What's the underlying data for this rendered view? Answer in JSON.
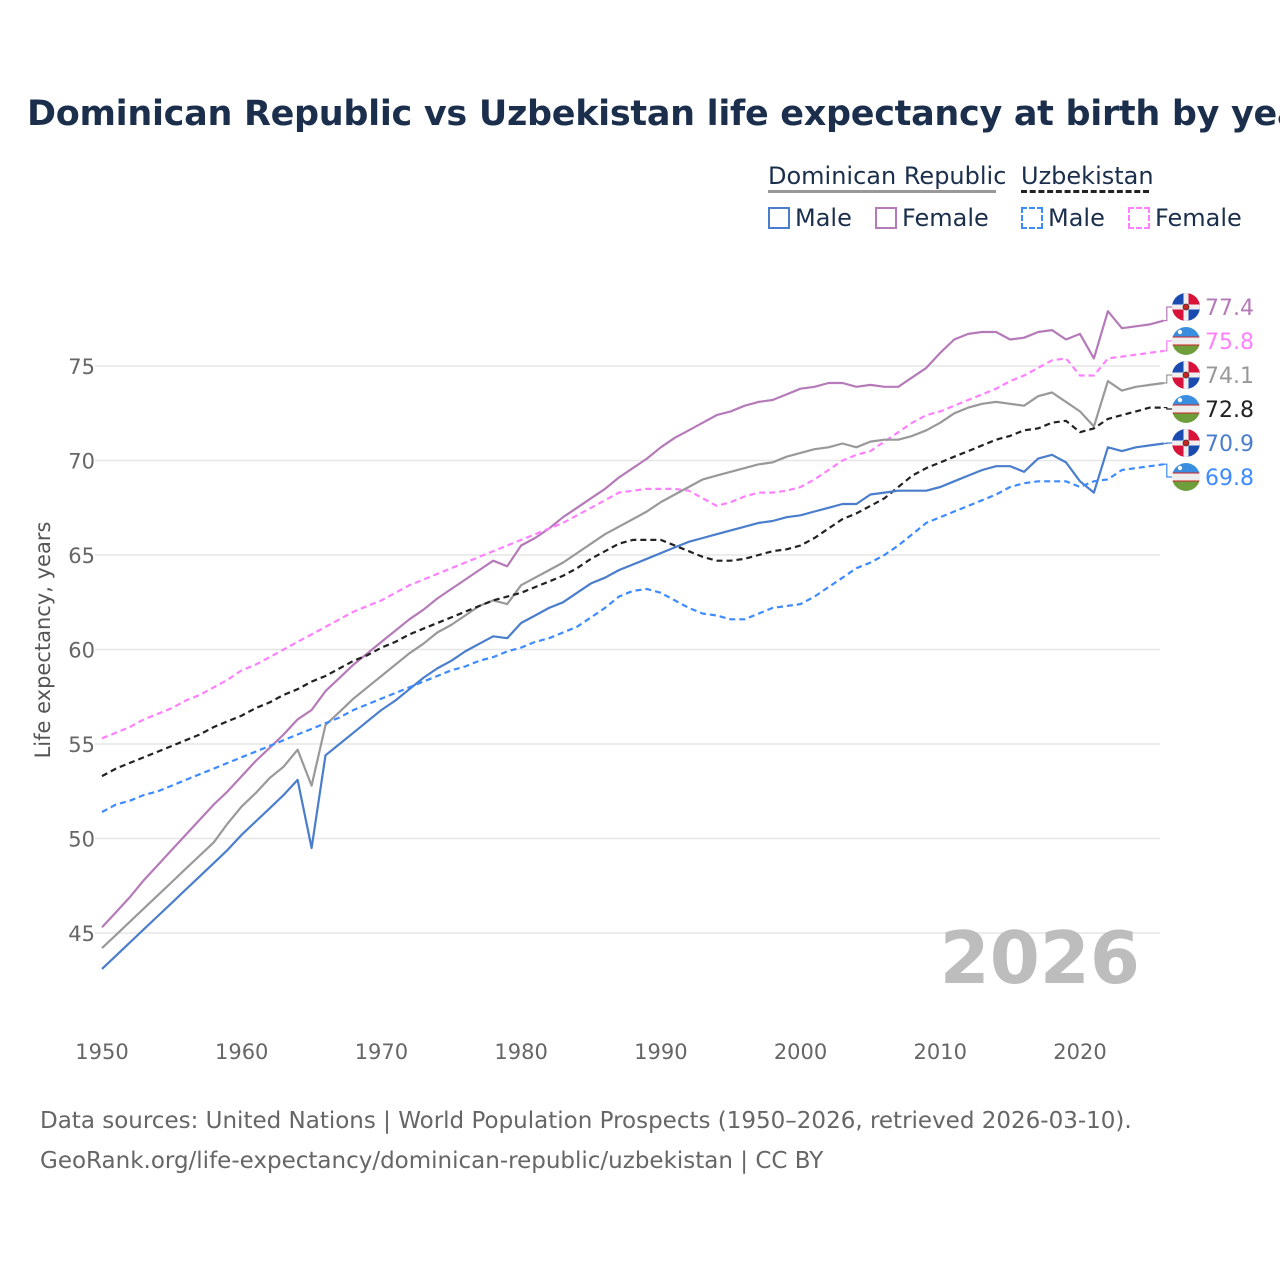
{
  "chart_data": {
    "type": "line",
    "title": "Dominican Republic vs Uzbekistan life expectancy at birth by year",
    "xlabel": "",
    "ylabel": "Life expectancy, years",
    "xlim": [
      1950,
      2026
    ],
    "ylim": [
      41,
      79
    ],
    "x_ticks": [
      "1950",
      "1960",
      "1970",
      "1980",
      "1990",
      "2000",
      "2010",
      "2020"
    ],
    "y_ticks": [
      "45",
      "50",
      "55",
      "60",
      "65",
      "70",
      "75"
    ],
    "grid": true,
    "year_watermark": "2026",
    "legend": {
      "placement": "top-right",
      "groups": [
        {
          "name": "Dominican Republic",
          "items": [
            "Male",
            "Female"
          ]
        },
        {
          "name": "Uzbekistan",
          "items": [
            "Male",
            "Female"
          ]
        }
      ]
    },
    "start_year": 1950,
    "series": [
      {
        "name": "Dominican Republic Female",
        "color": "#b57ab8",
        "dashed": false,
        "end_label": "77.4",
        "values": [
          45.3,
          46.1,
          46.9,
          47.8,
          48.6,
          49.4,
          50.2,
          51.0,
          51.8,
          52.5,
          53.3,
          54.1,
          54.8,
          55.5,
          56.3,
          56.8,
          57.8,
          58.5,
          59.2,
          59.8,
          60.4,
          61.0,
          61.6,
          62.1,
          62.7,
          63.2,
          63.7,
          64.2,
          64.7,
          64.4,
          65.5,
          65.9,
          66.4,
          67.0,
          67.5,
          68.0,
          68.5,
          69.1,
          69.6,
          70.1,
          70.7,
          71.2,
          71.6,
          72.0,
          72.4,
          72.6,
          72.9,
          73.1,
          73.2,
          73.5,
          73.8,
          73.9,
          74.1,
          74.1,
          73.9,
          74.0,
          73.9,
          73.9,
          74.4,
          74.9,
          75.7,
          76.4,
          76.7,
          76.8,
          76.8,
          76.4,
          76.5,
          76.8,
          76.9,
          76.4,
          76.7,
          75.4,
          77.9,
          77.0,
          77.1,
          77.2,
          77.4
        ]
      },
      {
        "name": "Uzbekistan Female",
        "color": "#ff80ff",
        "dashed": true,
        "end_label": "75.8",
        "values": [
          55.3,
          55.6,
          55.9,
          56.3,
          56.6,
          56.9,
          57.3,
          57.6,
          58.0,
          58.4,
          58.9,
          59.2,
          59.6,
          60.0,
          60.4,
          60.8,
          61.2,
          61.6,
          62.0,
          62.3,
          62.6,
          63.0,
          63.4,
          63.7,
          64.0,
          64.3,
          64.6,
          64.9,
          65.2,
          65.5,
          65.8,
          66.1,
          66.4,
          66.7,
          67.1,
          67.5,
          67.9,
          68.3,
          68.4,
          68.5,
          68.5,
          68.5,
          68.4,
          68.0,
          67.6,
          67.8,
          68.1,
          68.3,
          68.3,
          68.4,
          68.6,
          69.0,
          69.5,
          70.0,
          70.3,
          70.5,
          71.0,
          71.5,
          72.0,
          72.4,
          72.6,
          72.9,
          73.2,
          73.5,
          73.8,
          74.2,
          74.5,
          74.9,
          75.3,
          75.4,
          74.5,
          74.5,
          75.4,
          75.5,
          75.6,
          75.7,
          75.8
        ]
      },
      {
        "name": "Dominican Republic",
        "color": "#999999",
        "dashed": false,
        "end_label": "74.1",
        "values": [
          44.2,
          44.9,
          45.6,
          46.3,
          47.0,
          47.7,
          48.4,
          49.1,
          49.8,
          50.8,
          51.7,
          52.4,
          53.2,
          53.8,
          54.7,
          52.8,
          56.0,
          56.7,
          57.4,
          58.0,
          58.6,
          59.2,
          59.8,
          60.3,
          60.9,
          61.3,
          61.8,
          62.3,
          62.6,
          62.4,
          63.4,
          63.8,
          64.2,
          64.6,
          65.1,
          65.6,
          66.1,
          66.5,
          66.9,
          67.3,
          67.8,
          68.2,
          68.6,
          69.0,
          69.2,
          69.4,
          69.6,
          69.8,
          69.9,
          70.2,
          70.4,
          70.6,
          70.7,
          70.9,
          70.7,
          71.0,
          71.1,
          71.1,
          71.3,
          71.6,
          72.0,
          72.5,
          72.8,
          73.0,
          73.1,
          73.0,
          72.9,
          73.4,
          73.6,
          73.1,
          72.6,
          71.8,
          74.2,
          73.7,
          73.9,
          74.0,
          74.1
        ]
      },
      {
        "name": "Uzbekistan",
        "color": "#222222",
        "dashed": true,
        "end_label": "72.8",
        "values": [
          53.3,
          53.7,
          54.0,
          54.3,
          54.6,
          54.9,
          55.2,
          55.5,
          55.9,
          56.2,
          56.5,
          56.9,
          57.2,
          57.6,
          57.9,
          58.3,
          58.6,
          59.0,
          59.4,
          59.7,
          60.1,
          60.4,
          60.8,
          61.1,
          61.4,
          61.7,
          62.0,
          62.3,
          62.6,
          62.8,
          63.0,
          63.3,
          63.6,
          63.9,
          64.3,
          64.8,
          65.2,
          65.6,
          65.8,
          65.8,
          65.8,
          65.5,
          65.2,
          64.9,
          64.7,
          64.7,
          64.8,
          65.0,
          65.2,
          65.3,
          65.5,
          65.9,
          66.4,
          66.9,
          67.2,
          67.6,
          68.0,
          68.6,
          69.2,
          69.6,
          69.9,
          70.2,
          70.5,
          70.8,
          71.1,
          71.3,
          71.6,
          71.7,
          72.0,
          72.1,
          71.5,
          71.7,
          72.2,
          72.4,
          72.6,
          72.8,
          72.8
        ]
      },
      {
        "name": "Dominican Republic Male",
        "color": "#4a7dcb",
        "dashed": false,
        "end_label": "70.9",
        "values": [
          43.1,
          43.8,
          44.5,
          45.2,
          45.9,
          46.6,
          47.3,
          48.0,
          48.7,
          49.4,
          50.2,
          50.9,
          51.6,
          52.3,
          53.1,
          49.5,
          54.4,
          55.0,
          55.6,
          56.2,
          56.8,
          57.3,
          57.9,
          58.5,
          59.0,
          59.4,
          59.9,
          60.3,
          60.7,
          60.6,
          61.4,
          61.8,
          62.2,
          62.5,
          63.0,
          63.5,
          63.8,
          64.2,
          64.5,
          64.8,
          65.1,
          65.4,
          65.7,
          65.9,
          66.1,
          66.3,
          66.5,
          66.7,
          66.8,
          67.0,
          67.1,
          67.3,
          67.5,
          67.7,
          67.7,
          68.2,
          68.3,
          68.4,
          68.4,
          68.4,
          68.6,
          68.9,
          69.2,
          69.5,
          69.7,
          69.7,
          69.4,
          70.1,
          70.3,
          69.9,
          68.9,
          68.3,
          70.7,
          70.5,
          70.7,
          70.8,
          70.9
        ]
      },
      {
        "name": "Uzbekistan Male",
        "color": "#3d8bff",
        "dashed": true,
        "end_label": "69.8",
        "values": [
          51.4,
          51.8,
          52.0,
          52.3,
          52.5,
          52.8,
          53.1,
          53.4,
          53.7,
          54.0,
          54.3,
          54.6,
          54.9,
          55.2,
          55.5,
          55.8,
          56.1,
          56.4,
          56.8,
          57.1,
          57.4,
          57.7,
          58.0,
          58.3,
          58.6,
          58.9,
          59.1,
          59.4,
          59.6,
          59.9,
          60.1,
          60.4,
          60.6,
          60.9,
          61.2,
          61.7,
          62.2,
          62.8,
          63.1,
          63.2,
          63.0,
          62.6,
          62.2,
          61.9,
          61.8,
          61.6,
          61.6,
          61.9,
          62.2,
          62.3,
          62.4,
          62.8,
          63.3,
          63.8,
          64.3,
          64.6,
          65.0,
          65.5,
          66.1,
          66.7,
          67.0,
          67.3,
          67.6,
          67.9,
          68.2,
          68.6,
          68.8,
          68.9,
          68.9,
          68.9,
          68.6,
          68.9,
          69.0,
          69.5,
          69.6,
          69.7,
          69.8
        ]
      }
    ]
  },
  "footer": {
    "line1": "Data sources: United Nations | World Population Prospects (1950–2026, retrieved 2026-03-10).",
    "line2": "GeoRank.org/life-expectancy/dominican-republic/uzbekistan | CC BY"
  },
  "flags": [
    "dominican-republic-flag-icon",
    "uzbekistan-flag-icon"
  ]
}
